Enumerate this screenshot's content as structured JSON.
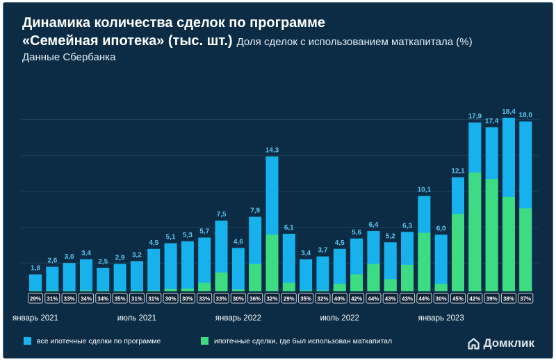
{
  "header": {
    "title_line1": "Динамика количества сделок по программе",
    "title_line2": "«Семейная ипотека» (тыс. шт.)",
    "subtitle_share": "Доля сделок с использованием маткапитала (%)",
    "source": "Данные Сбербанка"
  },
  "brand": {
    "name": "Домклик",
    "icon": "house-logo-icon"
  },
  "colors": {
    "background": "#0b2c44",
    "total": "#17b2ee",
    "matcap": "#3edc82",
    "label": "#5dc6f2",
    "pct_box": "#0d2234",
    "pct_border": "#c9d3db",
    "text": "#ffffff"
  },
  "chart_data": {
    "type": "bar",
    "title": "Динамика количества сделок по программе «Семейная ипотека» (тыс. шт.)",
    "ylabel": "",
    "xlabel": "",
    "ylim": [
      0,
      21
    ],
    "grid": true,
    "legend": "bottom",
    "value_labels": [
      "1,8",
      "2,6",
      "3,0",
      "3,4",
      "2,5",
      "2,9",
      "3,2",
      "4,5",
      "5,1",
      "5,3",
      "5,7",
      "7,5",
      "4,6",
      "7,9",
      "14,3",
      "6,1",
      "3,4",
      "3,7",
      "4,5",
      "5,6",
      "6,4",
      "5,2",
      "6,3",
      "10,1",
      "6,0",
      "12,1",
      "17,9",
      "17,4",
      "18,4",
      "18,0"
    ],
    "series": [
      {
        "name": "все ипотечные сделки по программе",
        "color": "#17b2ee",
        "values": [
          1.8,
          2.6,
          3.0,
          3.4,
          2.5,
          2.9,
          3.2,
          4.5,
          5.1,
          5.3,
          5.7,
          7.5,
          4.6,
          7.9,
          14.3,
          6.1,
          3.4,
          3.7,
          4.5,
          5.6,
          6.4,
          5.2,
          6.3,
          10.1,
          6.0,
          12.1,
          17.9,
          17.4,
          18.4,
          18.0
        ]
      },
      {
        "name": "ипотечные сделки, где был использован маткапитал",
        "color": "#3edc82",
        "shares": [
          "29%",
          "31%",
          "33%",
          "34%",
          "34%",
          "35%",
          "31%",
          "31%",
          "30%",
          "30%",
          "33%",
          "33%",
          "30%",
          "36%",
          "32%",
          "29%",
          "35%",
          "32%",
          "40%",
          "42%",
          "44%",
          "43%",
          "43%",
          "44%",
          "30%",
          "45%",
          "42%",
          "39%",
          "38%",
          "37%"
        ],
        "values": [
          0.07,
          0.08,
          0.05,
          0.1,
          0.08,
          0.07,
          0.09,
          0.1,
          0.25,
          0.3,
          0.9,
          2.0,
          0.2,
          2.9,
          6.0,
          0.9,
          0.1,
          0.1,
          0.8,
          1.8,
          2.9,
          1.3,
          2.8,
          6.2,
          0.8,
          8.2,
          12.6,
          11.9,
          10.0,
          8.8
        ]
      }
    ],
    "x_tick_labels": [
      "январь 2021",
      "июль 2021",
      "январь 2022",
      "июль 2022",
      "январь 2023"
    ],
    "x_tick_index": [
      0,
      6,
      12,
      18,
      24
    ]
  }
}
